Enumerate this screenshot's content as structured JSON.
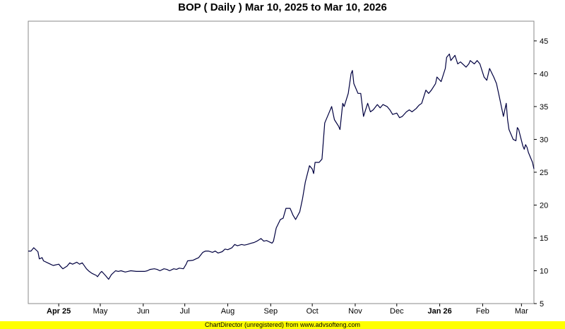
{
  "chart_data": {
    "type": "line",
    "title": "BOP ( Daily ) Mar 10, 2025 to Mar 10, 2026",
    "xlabel": "",
    "ylabel": "",
    "ylim": [
      5,
      48
    ],
    "yticks": [
      5,
      10,
      15,
      20,
      25,
      30,
      35,
      40,
      45
    ],
    "x_range": [
      "2025-03-10",
      "2026-03-10"
    ],
    "xticks": [
      {
        "label": "Apr 25",
        "date": "2025-04-01",
        "bold": true
      },
      {
        "label": "May",
        "date": "2025-05-01",
        "bold": false
      },
      {
        "label": "Jun",
        "date": "2025-06-01",
        "bold": false
      },
      {
        "label": "Jul",
        "date": "2025-07-01",
        "bold": false
      },
      {
        "label": "Aug",
        "date": "2025-08-01",
        "bold": false
      },
      {
        "label": "Sep",
        "date": "2025-09-01",
        "bold": false
      },
      {
        "label": "Oct",
        "date": "2025-10-01",
        "bold": false
      },
      {
        "label": "Nov",
        "date": "2025-11-01",
        "bold": false
      },
      {
        "label": "Dec",
        "date": "2025-12-01",
        "bold": false
      },
      {
        "label": "Jan 26",
        "date": "2026-01-01",
        "bold": true
      },
      {
        "label": "Feb",
        "date": "2026-02-01",
        "bold": false
      },
      {
        "label": "Mar",
        "date": "2026-03-01",
        "bold": false
      }
    ],
    "grid": true,
    "line_color": "#000040",
    "series": [
      {
        "points": [
          [
            "2025-03-10",
            13.0
          ],
          [
            "2025-03-12",
            13.0
          ],
          [
            "2025-03-14",
            13.5
          ],
          [
            "2025-03-17",
            12.9
          ],
          [
            "2025-03-18",
            11.8
          ],
          [
            "2025-03-20",
            12.0
          ],
          [
            "2025-03-21",
            11.5
          ],
          [
            "2025-03-24",
            11.2
          ],
          [
            "2025-03-26",
            11.0
          ],
          [
            "2025-03-28",
            10.8
          ],
          [
            "2025-04-01",
            11.0
          ],
          [
            "2025-04-03",
            10.5
          ],
          [
            "2025-04-04",
            10.3
          ],
          [
            "2025-04-07",
            10.7
          ],
          [
            "2025-04-09",
            11.2
          ],
          [
            "2025-04-11",
            11.0
          ],
          [
            "2025-04-14",
            11.3
          ],
          [
            "2025-04-16",
            11.0
          ],
          [
            "2025-04-18",
            11.2
          ],
          [
            "2025-04-21",
            10.3
          ],
          [
            "2025-04-23",
            9.9
          ],
          [
            "2025-04-25",
            9.6
          ],
          [
            "2025-04-28",
            9.3
          ],
          [
            "2025-04-29",
            9.1
          ],
          [
            "2025-05-01",
            9.7
          ],
          [
            "2025-05-02",
            9.9
          ],
          [
            "2025-05-05",
            9.2
          ],
          [
            "2025-05-07",
            8.7
          ],
          [
            "2025-05-09",
            9.4
          ],
          [
            "2025-05-12",
            10.0
          ],
          [
            "2025-05-14",
            9.9
          ],
          [
            "2025-05-16",
            10.0
          ],
          [
            "2025-05-19",
            9.8
          ],
          [
            "2025-05-21",
            9.9
          ],
          [
            "2025-05-23",
            10.0
          ],
          [
            "2025-05-27",
            9.9
          ],
          [
            "2025-05-29",
            9.9
          ],
          [
            "2025-06-02",
            9.9
          ],
          [
            "2025-06-04",
            10.0
          ],
          [
            "2025-06-06",
            10.2
          ],
          [
            "2025-06-09",
            10.3
          ],
          [
            "2025-06-11",
            10.2
          ],
          [
            "2025-06-13",
            10.0
          ],
          [
            "2025-06-16",
            10.3
          ],
          [
            "2025-06-18",
            10.2
          ],
          [
            "2025-06-20",
            10.0
          ],
          [
            "2025-06-23",
            10.3
          ],
          [
            "2025-06-25",
            10.2
          ],
          [
            "2025-06-27",
            10.4
          ],
          [
            "2025-06-30",
            10.3
          ],
          [
            "2025-07-02",
            11.0
          ],
          [
            "2025-07-03",
            11.5
          ],
          [
            "2025-07-07",
            11.6
          ],
          [
            "2025-07-09",
            11.8
          ],
          [
            "2025-07-11",
            12.0
          ],
          [
            "2025-07-14",
            12.8
          ],
          [
            "2025-07-16",
            13.0
          ],
          [
            "2025-07-18",
            13.0
          ],
          [
            "2025-07-21",
            12.8
          ],
          [
            "2025-07-23",
            13.0
          ],
          [
            "2025-07-25",
            12.7
          ],
          [
            "2025-07-28",
            12.9
          ],
          [
            "2025-07-30",
            13.3
          ],
          [
            "2025-08-01",
            13.2
          ],
          [
            "2025-08-04",
            13.5
          ],
          [
            "2025-08-06",
            14.0
          ],
          [
            "2025-08-08",
            13.8
          ],
          [
            "2025-08-11",
            14.0
          ],
          [
            "2025-08-13",
            13.9
          ],
          [
            "2025-08-15",
            14.0
          ],
          [
            "2025-08-18",
            14.2
          ],
          [
            "2025-08-20",
            14.3
          ],
          [
            "2025-08-22",
            14.5
          ],
          [
            "2025-08-25",
            14.9
          ],
          [
            "2025-08-27",
            14.5
          ],
          [
            "2025-08-29",
            14.6
          ],
          [
            "2025-09-02",
            14.2
          ],
          [
            "2025-09-03",
            14.5
          ],
          [
            "2025-09-05",
            16.5
          ],
          [
            "2025-09-08",
            17.8
          ],
          [
            "2025-09-10",
            18.0
          ],
          [
            "2025-09-12",
            19.5
          ],
          [
            "2025-09-15",
            19.5
          ],
          [
            "2025-09-17",
            18.5
          ],
          [
            "2025-09-19",
            17.8
          ],
          [
            "2025-09-22",
            19.0
          ],
          [
            "2025-09-24",
            21.0
          ],
          [
            "2025-09-26",
            23.5
          ],
          [
            "2025-09-29",
            26.0
          ],
          [
            "2025-10-01",
            25.5
          ],
          [
            "2025-10-02",
            24.8
          ],
          [
            "2025-10-03",
            26.5
          ],
          [
            "2025-10-06",
            26.5
          ],
          [
            "2025-10-08",
            27.0
          ],
          [
            "2025-10-10",
            32.5
          ],
          [
            "2025-10-13",
            34.0
          ],
          [
            "2025-10-15",
            35.0
          ],
          [
            "2025-10-17",
            33.0
          ],
          [
            "2025-10-20",
            32.0
          ],
          [
            "2025-10-21",
            31.5
          ],
          [
            "2025-10-23",
            35.5
          ],
          [
            "2025-10-24",
            35.0
          ],
          [
            "2025-10-27",
            37.0
          ],
          [
            "2025-10-29",
            40.0
          ],
          [
            "2025-10-30",
            40.5
          ],
          [
            "2025-10-31",
            38.5
          ],
          [
            "2025-11-03",
            37.0
          ],
          [
            "2025-11-05",
            37.0
          ],
          [
            "2025-11-07",
            33.5
          ],
          [
            "2025-11-10",
            35.5
          ],
          [
            "2025-11-12",
            34.2
          ],
          [
            "2025-11-14",
            34.5
          ],
          [
            "2025-11-17",
            35.3
          ],
          [
            "2025-11-19",
            34.8
          ],
          [
            "2025-11-21",
            35.3
          ],
          [
            "2025-11-24",
            35.0
          ],
          [
            "2025-11-26",
            34.5
          ],
          [
            "2025-11-28",
            33.8
          ],
          [
            "2025-12-01",
            34.0
          ],
          [
            "2025-12-03",
            33.3
          ],
          [
            "2025-12-05",
            33.5
          ],
          [
            "2025-12-08",
            34.2
          ],
          [
            "2025-12-10",
            34.5
          ],
          [
            "2025-12-12",
            34.2
          ],
          [
            "2025-12-15",
            34.7
          ],
          [
            "2025-12-17",
            35.2
          ],
          [
            "2025-12-19",
            35.5
          ],
          [
            "2025-12-22",
            37.5
          ],
          [
            "2025-12-24",
            37.0
          ],
          [
            "2025-12-26",
            37.5
          ],
          [
            "2025-12-29",
            38.5
          ],
          [
            "2025-12-30",
            39.5
          ],
          [
            "2026-01-02",
            38.8
          ],
          [
            "2026-01-05",
            40.8
          ],
          [
            "2026-01-06",
            42.5
          ],
          [
            "2026-01-08",
            43.0
          ],
          [
            "2026-01-09",
            42.0
          ],
          [
            "2026-01-12",
            42.8
          ],
          [
            "2026-01-14",
            41.5
          ],
          [
            "2026-01-16",
            41.8
          ],
          [
            "2026-01-20",
            41.0
          ],
          [
            "2026-01-22",
            41.5
          ],
          [
            "2026-01-23",
            42.0
          ],
          [
            "2026-01-26",
            41.5
          ],
          [
            "2026-01-28",
            42.0
          ],
          [
            "2026-01-30",
            41.5
          ],
          [
            "2026-02-02",
            39.5
          ],
          [
            "2026-02-04",
            39.0
          ],
          [
            "2026-02-06",
            40.8
          ],
          [
            "2026-02-09",
            39.5
          ],
          [
            "2026-02-11",
            38.5
          ],
          [
            "2026-02-13",
            36.5
          ],
          [
            "2026-02-16",
            33.5
          ],
          [
            "2026-02-18",
            35.5
          ],
          [
            "2026-02-19",
            33.0
          ],
          [
            "2026-02-20",
            31.5
          ],
          [
            "2026-02-23",
            30.0
          ],
          [
            "2026-02-25",
            29.8
          ],
          [
            "2026-02-26",
            31.8
          ],
          [
            "2026-02-27",
            31.5
          ],
          [
            "2026-03-02",
            29.0
          ],
          [
            "2026-03-03",
            28.5
          ],
          [
            "2026-03-04",
            29.2
          ],
          [
            "2026-03-05",
            28.8
          ],
          [
            "2026-03-06",
            28.0
          ],
          [
            "2026-03-09",
            26.5
          ],
          [
            "2026-03-10",
            25.5
          ]
        ]
      }
    ]
  },
  "footer": {
    "credit": "ChartDirector (unregistered) from www.advsofteng.com"
  }
}
